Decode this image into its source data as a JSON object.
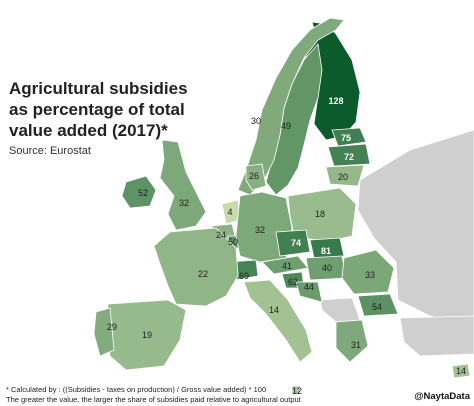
{
  "title": "Agricultural subsidies\nas percentage of total\nvalue added (2017)*",
  "source": "Source: Eurostat",
  "footnote_line1": "* Calculated by : ((Subsidies - taxes on production) / Gross value added) * 100",
  "footnote_line2": "The greater the value, the larger the share of subsidies paid relative to agricultural output",
  "credit": "@NaytaData",
  "colors": {
    "sea": "#ffffff",
    "non_eu": "#cfcfcf",
    "scale_low": "#eef5c8",
    "scale_high": "#0b5b2c",
    "border": "#ffffff"
  },
  "chart_data": {
    "type": "choropleth",
    "regions": [
      {
        "region": "Finland",
        "value": 128
      },
      {
        "region": "Estonia",
        "value": 75
      },
      {
        "region": "Latvia",
        "value": 72
      },
      {
        "region": "Lithuania",
        "value": 20
      },
      {
        "region": "Sweden",
        "value": 49
      },
      {
        "region": "Norway",
        "value": 30
      },
      {
        "region": "Denmark",
        "value": 26
      },
      {
        "region": "Ireland",
        "value": 52
      },
      {
        "region": "United Kingdom",
        "value": 32
      },
      {
        "region": "Netherlands",
        "value": 4
      },
      {
        "region": "Belgium",
        "value": 24
      },
      {
        "region": "Luxembourg",
        "value": 50
      },
      {
        "region": "Germany",
        "value": 32
      },
      {
        "region": "Poland",
        "value": 18
      },
      {
        "region": "Czech Republic",
        "value": 74
      },
      {
        "region": "Slovakia",
        "value": 81
      },
      {
        "region": "Austria",
        "value": 41
      },
      {
        "region": "Hungary",
        "value": 40
      },
      {
        "region": "Switzerland",
        "value": 69
      },
      {
        "region": "Slovenia",
        "value": 62
      },
      {
        "region": "Croatia",
        "value": 44
      },
      {
        "region": "France",
        "value": 22
      },
      {
        "region": "Romania",
        "value": 33
      },
      {
        "region": "Bulgaria",
        "value": 54
      },
      {
        "region": "Greece",
        "value": 31
      },
      {
        "region": "Italy",
        "value": 14
      },
      {
        "region": "Spain",
        "value": 19
      },
      {
        "region": "Portugal",
        "value": 29
      },
      {
        "region": "Malta",
        "value": 12
      },
      {
        "region": "Cyprus",
        "value": 14
      }
    ]
  }
}
